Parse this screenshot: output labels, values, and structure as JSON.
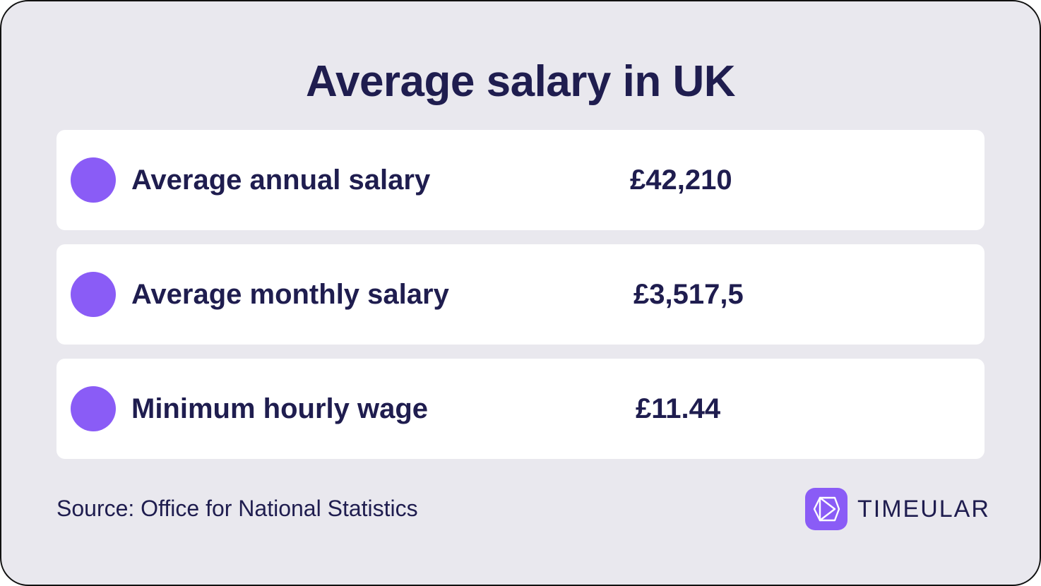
{
  "title": "Average salary in UK",
  "rows": [
    {
      "label": "Average annual salary",
      "value": "£42,210"
    },
    {
      "label": "Average monthly salary",
      "value": "£3,517,5"
    },
    {
      "label": "Minimum hourly wage",
      "value": "£11.44"
    }
  ],
  "source": "Source: Office for National Statistics",
  "brand": {
    "name": "TIMEULAR",
    "icon": "timeular-logo-icon"
  },
  "colors": {
    "background": "#e9e8ee",
    "card": "#ffffff",
    "accent": "#8a5cf6",
    "text": "#1f1d4f"
  }
}
